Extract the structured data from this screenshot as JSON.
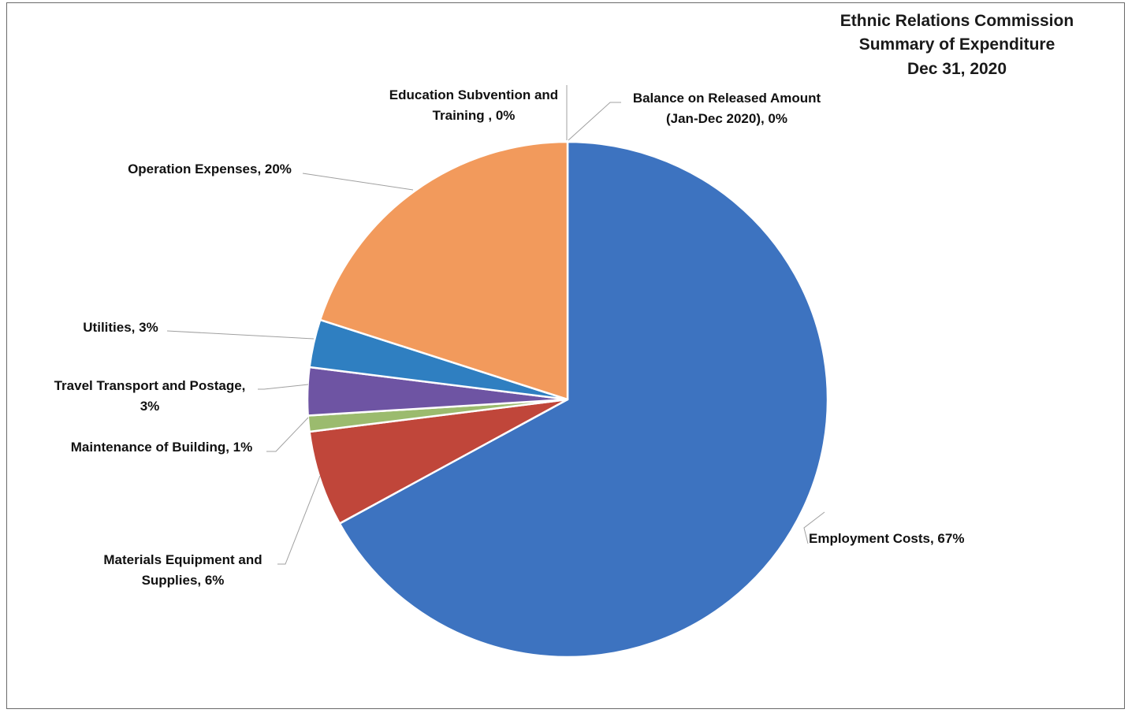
{
  "chart_data": {
    "type": "pie",
    "title": [
      "Ethnic Relations Commission",
      "Summary of Expenditure",
      "Dec 31, 2020"
    ],
    "slices": [
      {
        "name": "Employment Costs",
        "value": 67,
        "label": [
          "Employment Costs, 67%"
        ],
        "color": "#3d73c0"
      },
      {
        "name": "Materials Equipment and Supplies",
        "value": 6,
        "label": [
          "Materials Equipment and",
          "Supplies, 6%"
        ],
        "color": "#c0463a"
      },
      {
        "name": "Maintenance of Building",
        "value": 1,
        "label": [
          "Maintenance of Building, 1%"
        ],
        "color": "#9bbb6e"
      },
      {
        "name": "Travel Transport and Postage",
        "value": 3,
        "label": [
          "Travel Transport and Postage,",
          "3%"
        ],
        "color": "#6e54a3"
      },
      {
        "name": "Utilities",
        "value": 3,
        "label": [
          "Utilities, 3%"
        ],
        "color": "#2f7fc1"
      },
      {
        "name": "Operation Expenses",
        "value": 20,
        "label": [
          "Operation Expenses, 20%"
        ],
        "color": "#f29a5c"
      },
      {
        "name": "Education Subvention and Training",
        "value": 0,
        "label": [
          "Education Subvention and",
          "Training , 0%"
        ],
        "color": "#9ea5b0"
      },
      {
        "name": "Balance on Released Amount (Jan-Dec 2020)",
        "value": 0,
        "label": [
          "Balance on Released Amount",
          "(Jan-Dec 2020), 0%"
        ],
        "color": "#ffc000"
      }
    ]
  }
}
